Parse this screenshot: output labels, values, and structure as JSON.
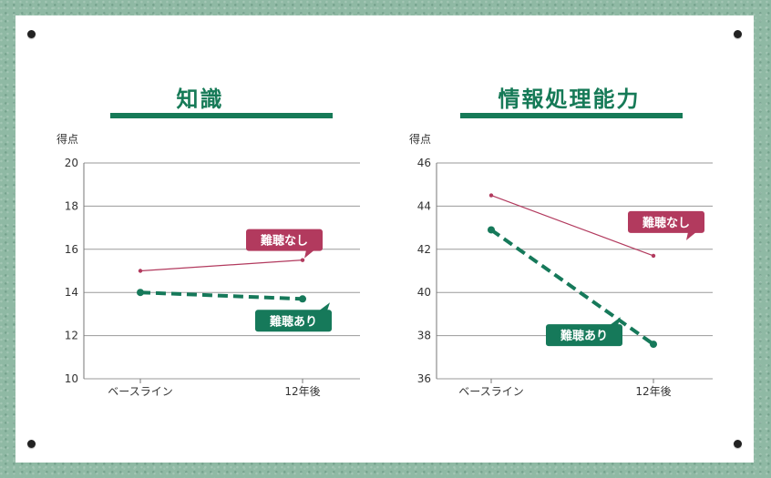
{
  "colors": {
    "no_hearing_loss": "#b23a5e",
    "hearing_loss": "#16795a",
    "title": "#167a57"
  },
  "chart_data": [
    {
      "type": "line",
      "title": "知識",
      "ylabel": "得点",
      "categories": [
        "ベースライン",
        "12年後"
      ],
      "yticks": [
        "10",
        "12",
        "14",
        "16",
        "18",
        "20"
      ],
      "ylim": [
        10,
        20
      ],
      "grid": true,
      "series": [
        {
          "name": "難聴なし",
          "values": [
            15.0,
            15.5
          ],
          "style": "solid-thin"
        },
        {
          "name": "難聴あり",
          "values": [
            14.0,
            13.7
          ],
          "style": "dashed-thick"
        }
      ]
    },
    {
      "type": "line",
      "title": "情報処理能力",
      "ylabel": "得点",
      "categories": [
        "ベースライン",
        "12年後"
      ],
      "yticks": [
        "36",
        "38",
        "40",
        "42",
        "44",
        "46"
      ],
      "ylim": [
        36,
        46
      ],
      "grid": true,
      "series": [
        {
          "name": "難聴なし",
          "values": [
            44.5,
            41.7
          ],
          "style": "solid-thin"
        },
        {
          "name": "難聴あり",
          "values": [
            42.9,
            37.6
          ],
          "style": "dashed-thick"
        }
      ]
    }
  ]
}
